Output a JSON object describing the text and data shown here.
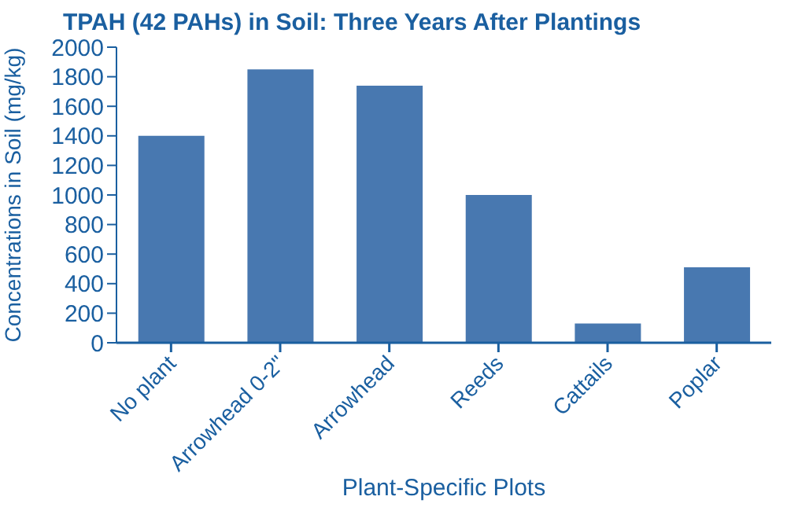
{
  "chart_data": {
    "type": "bar",
    "title": "TPAH (42 PAHs) in Soil: Three Years After Plantings",
    "xlabel": "Plant-Specific Plots",
    "ylabel": "Concentrations in Soil (mg/kg)",
    "categories": [
      "No plant",
      "Arrowhead 0-2\"",
      "Arrowhead",
      "Reeds",
      "Cattails",
      "Poplar"
    ],
    "values": [
      1400,
      1850,
      1740,
      1000,
      130,
      510
    ],
    "color": "#4878b0",
    "ylim": [
      0,
      2000
    ],
    "yticks": [
      0,
      200,
      400,
      600,
      800,
      1000,
      1200,
      1400,
      1600,
      1800,
      2000
    ],
    "grid": false,
    "legend": false
  }
}
